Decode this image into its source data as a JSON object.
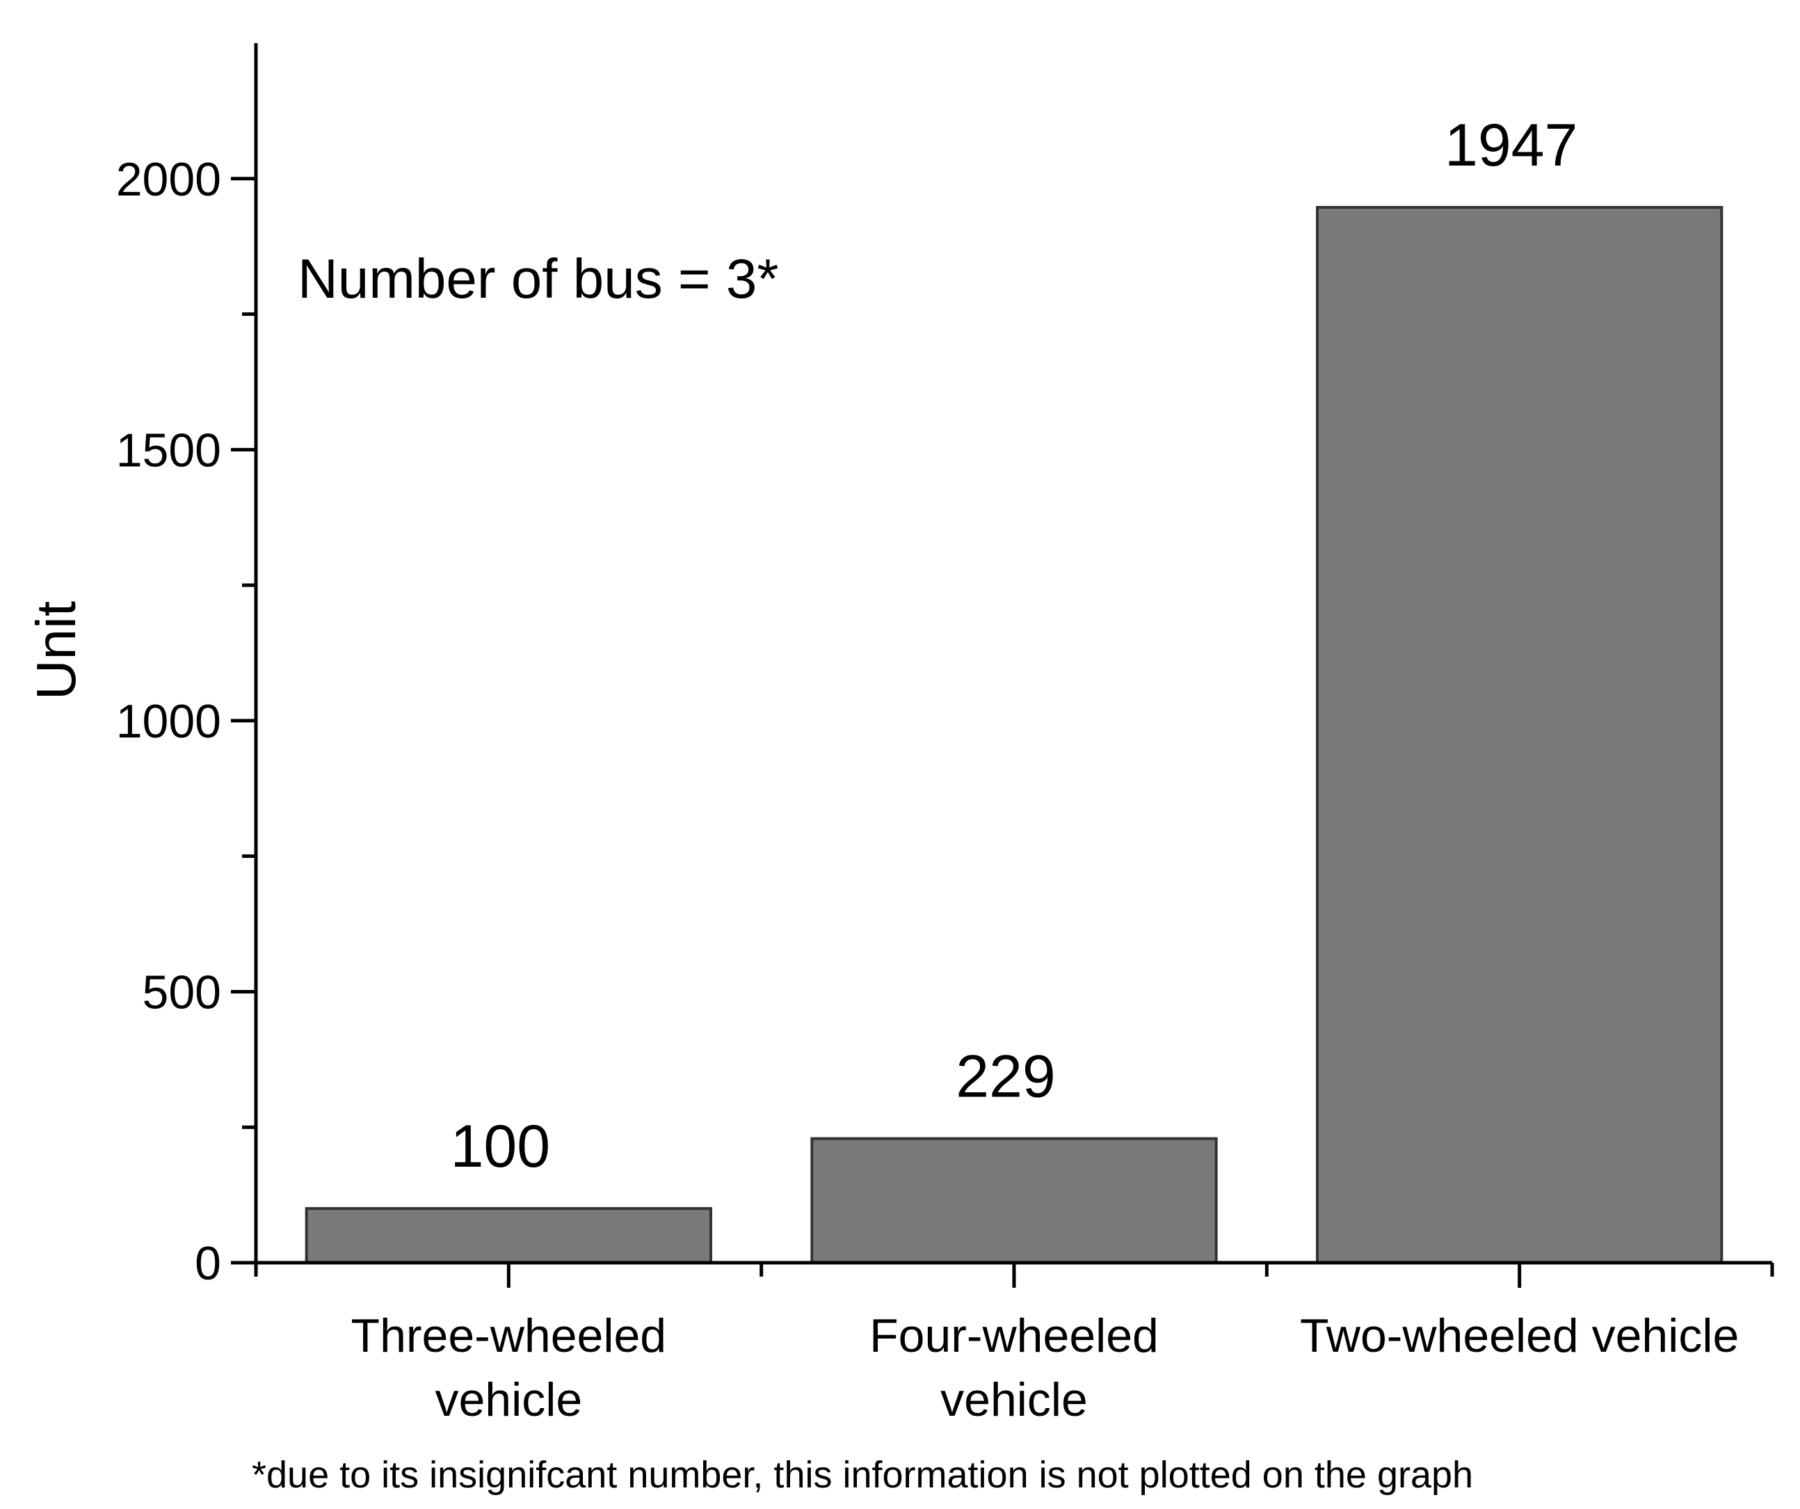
{
  "chart_data": {
    "type": "bar",
    "categories": [
      [
        "Three-wheeled",
        "vehicle"
      ],
      [
        "Four-wheeled",
        "vehicle"
      ],
      [
        "Two-wheeled vehicle"
      ]
    ],
    "values": [
      100,
      229,
      1947
    ],
    "value_labels": [
      "100",
      "229",
      "1947"
    ],
    "ylabel": "Unit",
    "xlabel": "",
    "ylim": [
      0,
      2250
    ],
    "yticks": [
      0,
      500,
      1000,
      1500,
      2000
    ],
    "ytick_labels": [
      "0",
      "500",
      "1000",
      "1500",
      "2000"
    ],
    "y_minor_ticks": [
      250,
      750,
      1250,
      1750
    ],
    "annotation": "Number of bus = 3*",
    "footnote": "*due to its insignifcant number, this information is not plotted on the graph",
    "grid": false,
    "bar_color": "#7a7a7a",
    "bar_edge_color": "#333333"
  }
}
